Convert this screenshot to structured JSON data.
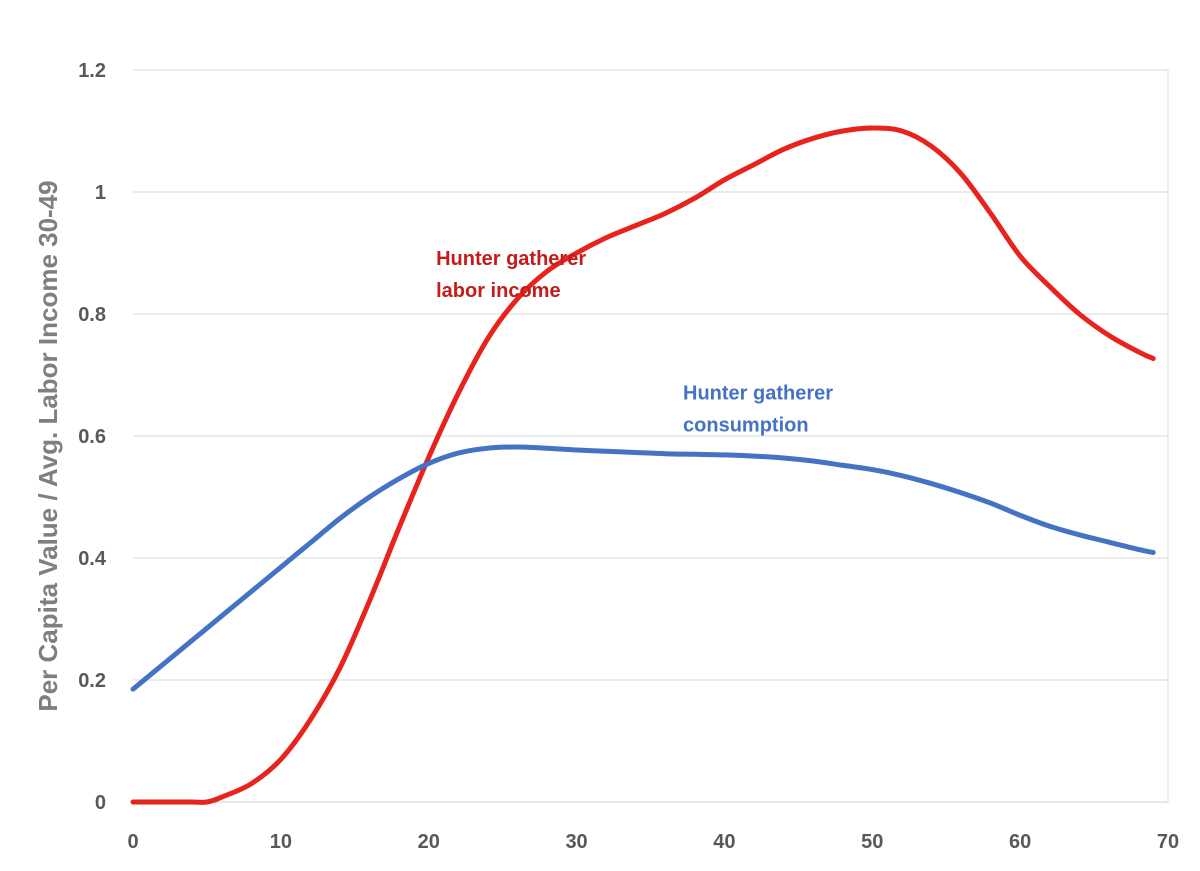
{
  "chart_data": {
    "type": "line",
    "title": "",
    "xlabel": "",
    "ylabel": "Per Capita Value / Avg. Labor Income 30-49",
    "xlim": [
      0,
      70
    ],
    "ylim": [
      0,
      1.2
    ],
    "x_ticks": [
      "0",
      "10",
      "20",
      "30",
      "40",
      "50",
      "60",
      "70"
    ],
    "y_ticks": [
      "0",
      "0.2",
      "0.4",
      "0.6",
      "0.8",
      "1",
      "1.2"
    ],
    "grid": "horizontal",
    "series": [
      {
        "name": "Hunter gatherer labor income",
        "color": "#e8231e",
        "points": [
          [
            0,
            0
          ],
          [
            2,
            0
          ],
          [
            4,
            0
          ],
          [
            5,
            0
          ],
          [
            6,
            0.008
          ],
          [
            8,
            0.03
          ],
          [
            10,
            0.07
          ],
          [
            12,
            0.135
          ],
          [
            14,
            0.22
          ],
          [
            16,
            0.33
          ],
          [
            18,
            0.45
          ],
          [
            20,
            0.565
          ],
          [
            22,
            0.67
          ],
          [
            24,
            0.76
          ],
          [
            26,
            0.825
          ],
          [
            28,
            0.87
          ],
          [
            30,
            0.9
          ],
          [
            32,
            0.925
          ],
          [
            34,
            0.945
          ],
          [
            36,
            0.965
          ],
          [
            38,
            0.99
          ],
          [
            40,
            1.02
          ],
          [
            42,
            1.045
          ],
          [
            44,
            1.07
          ],
          [
            46,
            1.088
          ],
          [
            48,
            1.1
          ],
          [
            50,
            1.105
          ],
          [
            52,
            1.1
          ],
          [
            54,
            1.075
          ],
          [
            56,
            1.03
          ],
          [
            58,
            0.965
          ],
          [
            60,
            0.895
          ],
          [
            62,
            0.845
          ],
          [
            64,
            0.8
          ],
          [
            66,
            0.765
          ],
          [
            68,
            0.738
          ],
          [
            69,
            0.727
          ]
        ]
      },
      {
        "name": "Hunter gatherer consumption",
        "color": "#4472c4",
        "points": [
          [
            0,
            0.185
          ],
          [
            2,
            0.225
          ],
          [
            4,
            0.265
          ],
          [
            6,
            0.305
          ],
          [
            8,
            0.345
          ],
          [
            10,
            0.385
          ],
          [
            12,
            0.425
          ],
          [
            14,
            0.465
          ],
          [
            16,
            0.5
          ],
          [
            18,
            0.53
          ],
          [
            20,
            0.555
          ],
          [
            22,
            0.572
          ],
          [
            24,
            0.58
          ],
          [
            26,
            0.582
          ],
          [
            28,
            0.58
          ],
          [
            30,
            0.577
          ],
          [
            32,
            0.575
          ],
          [
            34,
            0.573
          ],
          [
            36,
            0.571
          ],
          [
            38,
            0.57
          ],
          [
            40,
            0.569
          ],
          [
            42,
            0.567
          ],
          [
            44,
            0.564
          ],
          [
            46,
            0.559
          ],
          [
            48,
            0.552
          ],
          [
            50,
            0.545
          ],
          [
            52,
            0.535
          ],
          [
            54,
            0.522
          ],
          [
            56,
            0.507
          ],
          [
            58,
            0.49
          ],
          [
            60,
            0.47
          ],
          [
            62,
            0.452
          ],
          [
            64,
            0.438
          ],
          [
            66,
            0.426
          ],
          [
            68,
            0.414
          ],
          [
            69,
            0.409
          ]
        ]
      }
    ],
    "annotations": [
      {
        "lines": [
          "Hunter gatherer",
          "labor income"
        ],
        "color": "#c51b1b",
        "at": [
          20.5,
          0.88
        ]
      },
      {
        "lines": [
          "Hunter gatherer",
          "consumption"
        ],
        "color": "#4472c4",
        "at": [
          37.2,
          0.66
        ]
      }
    ]
  }
}
